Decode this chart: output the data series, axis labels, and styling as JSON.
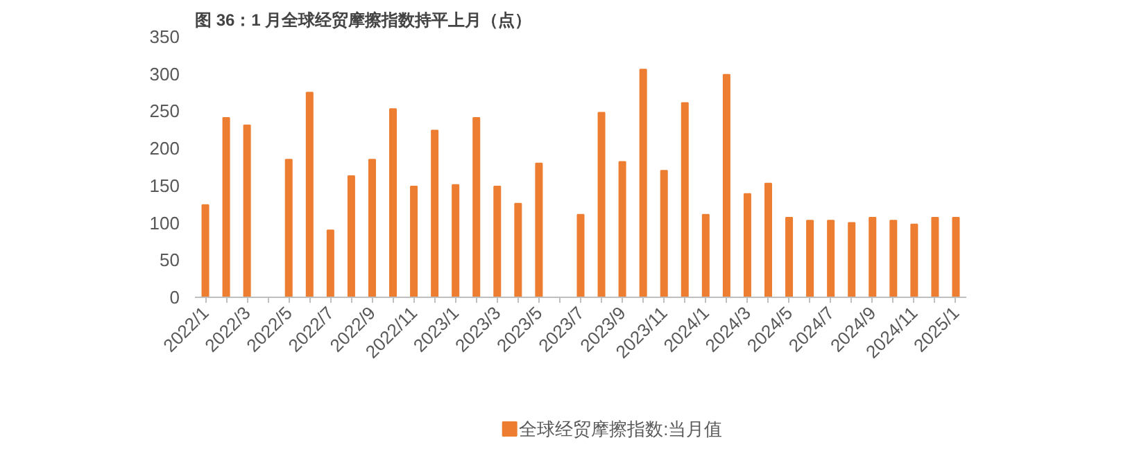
{
  "chart_data": {
    "type": "bar",
    "title": "图 36：1 月全球经贸摩擦指数持平上月（点）",
    "categories": [
      "2022/1",
      null,
      "2022/3",
      null,
      "2022/5",
      null,
      "2022/7",
      null,
      "2022/9",
      null,
      "2022/11",
      null,
      "2023/1",
      null,
      "2023/3",
      null,
      "2023/5",
      null,
      "2023/7",
      null,
      "2023/9",
      null,
      "2023/11",
      null,
      "2024/1",
      null,
      "2024/3",
      null,
      "2024/5",
      null,
      "2024/7",
      null,
      "2024/9",
      null,
      "2024/11",
      null,
      "2025/1"
    ],
    "series": [
      {
        "name": "全球经贸摩擦指数:当月值",
        "color": "#ed7d31",
        "values": [
          124,
          241,
          231,
          null,
          185,
          275,
          90,
          163,
          185,
          253,
          149,
          224,
          151,
          241,
          149,
          126,
          180,
          null,
          111,
          248,
          182,
          306,
          170,
          261,
          111,
          299,
          139,
          153,
          107,
          103,
          103,
          100,
          107,
          103,
          98,
          107,
          107
        ]
      }
    ],
    "ylim": [
      0,
      350
    ],
    "yticks": [
      0,
      50,
      100,
      150,
      200,
      250,
      300,
      350
    ],
    "grid": false,
    "legend": "bottom"
  }
}
